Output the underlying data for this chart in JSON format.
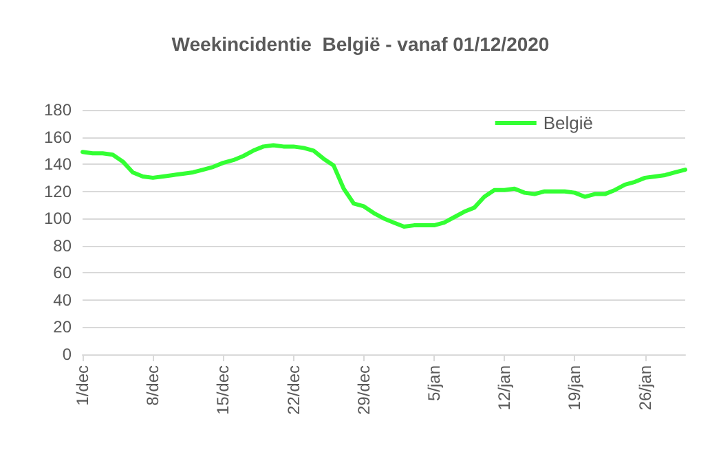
{
  "chart_data": {
    "type": "line",
    "title": "Weekincidentie  België - vanaf 01/12/2020",
    "categories": [
      "1/dec",
      null,
      null,
      null,
      null,
      null,
      null,
      "8/dec",
      null,
      null,
      null,
      null,
      null,
      null,
      "15/dec",
      null,
      null,
      null,
      null,
      null,
      null,
      "22/dec",
      null,
      null,
      null,
      null,
      null,
      null,
      "29/dec",
      null,
      null,
      null,
      null,
      null,
      null,
      "5/jan",
      null,
      null,
      null,
      null,
      null,
      null,
      "12/jan",
      null,
      null,
      null,
      null,
      null,
      null,
      "19/jan",
      null,
      null,
      null,
      null,
      null,
      null,
      "26/jan",
      null,
      null,
      null,
      null
    ],
    "series": [
      {
        "name": "België",
        "color": "#33ff33",
        "values": [
          149,
          148,
          148,
          147,
          142,
          134,
          131,
          130,
          131,
          132,
          133,
          134,
          136,
          138,
          141,
          143,
          146,
          150,
          153,
          154,
          153,
          153,
          152,
          150,
          144,
          139,
          122,
          111,
          109,
          104,
          100,
          97,
          94,
          95,
          95,
          95,
          97,
          101,
          105,
          108,
          116,
          121,
          121,
          122,
          119,
          118,
          120,
          120,
          120,
          119,
          116,
          118,
          118,
          121,
          125,
          127,
          130,
          131,
          132,
          134,
          136
        ]
      }
    ],
    "ylim": [
      0,
      180
    ],
    "yticks": [
      0,
      20,
      40,
      60,
      80,
      100,
      120,
      140,
      160,
      180
    ],
    "grid": "y",
    "legend": "top right",
    "marker": "none",
    "line_style": "solid"
  }
}
